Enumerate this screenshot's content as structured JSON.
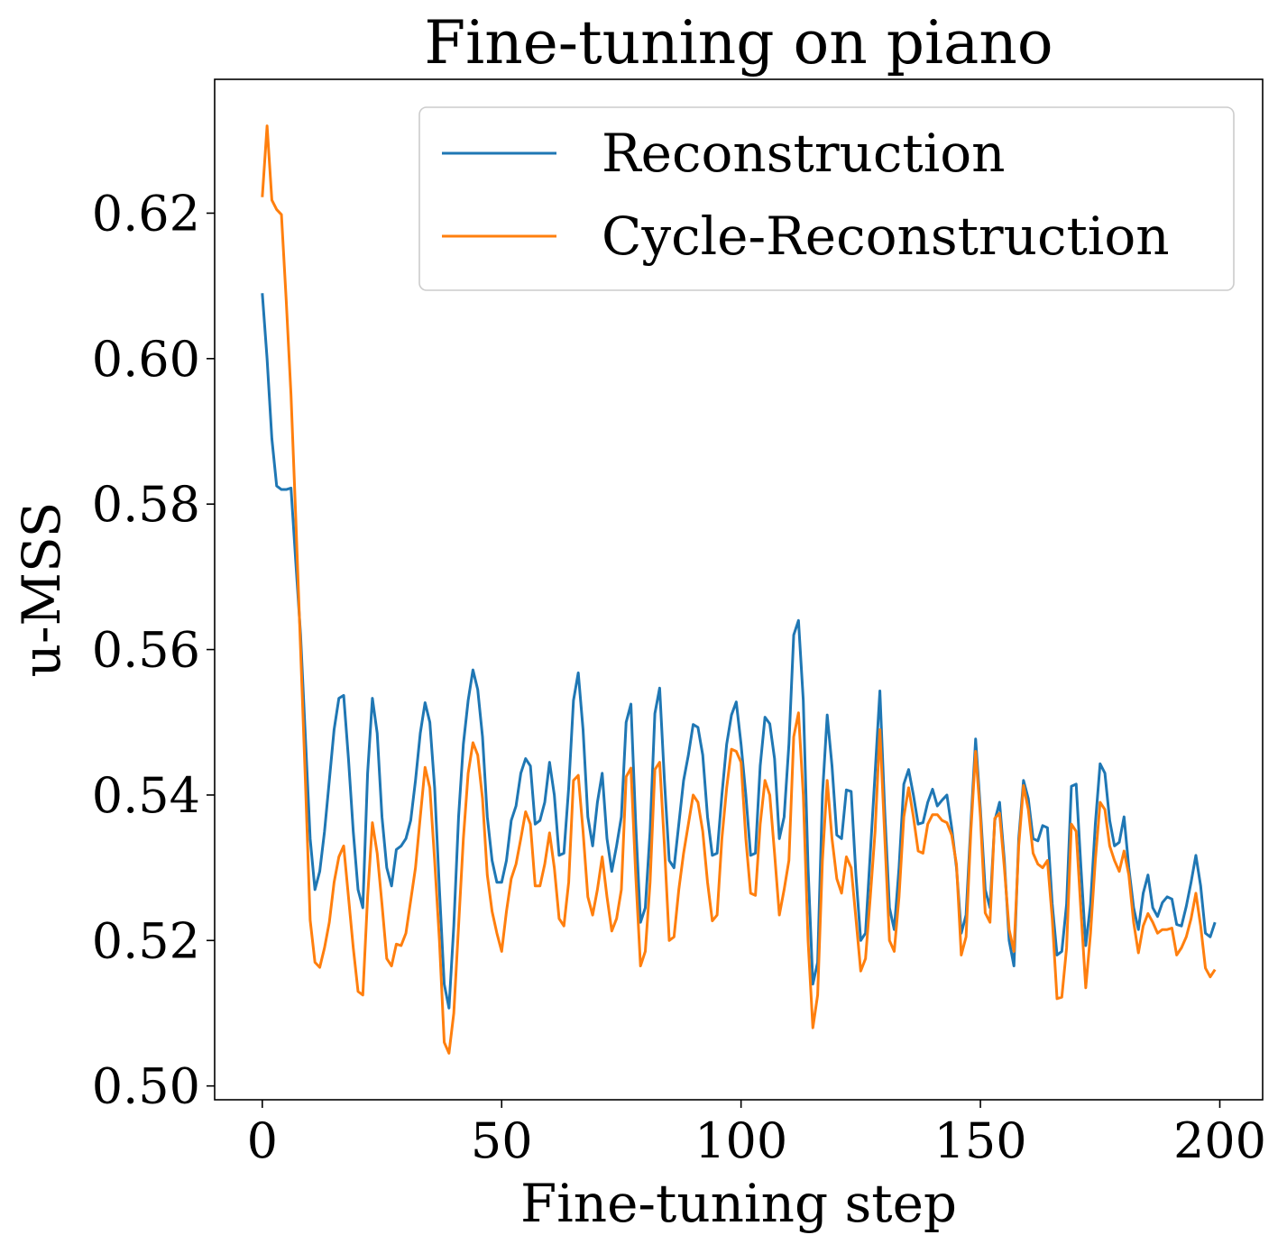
{
  "chart_data": {
    "type": "line",
    "title": "Fine-tuning on piano",
    "x_label": "Fine-tuning step",
    "y_label": "u-MSS",
    "x": [
      0,
      1,
      2,
      3,
      4,
      5,
      6,
      7,
      8,
      9,
      10,
      11,
      12,
      13,
      14,
      15,
      16,
      17,
      18,
      19,
      20,
      21,
      22,
      23,
      24,
      25,
      26,
      27,
      28,
      29,
      30,
      31,
      32,
      33,
      34,
      35,
      36,
      37,
      38,
      39,
      40,
      41,
      42,
      43,
      44,
      45,
      46,
      47,
      48,
      49,
      50,
      51,
      52,
      53,
      54,
      55,
      56,
      57,
      58,
      59,
      60,
      61,
      62,
      63,
      64,
      65,
      66,
      67,
      68,
      69,
      70,
      71,
      72,
      73,
      74,
      75,
      76,
      77,
      78,
      79,
      80,
      81,
      82,
      83,
      84,
      85,
      86,
      87,
      88,
      89,
      90,
      91,
      92,
      93,
      94,
      95,
      96,
      97,
      98,
      99,
      100,
      101,
      102,
      103,
      104,
      105,
      106,
      107,
      108,
      109,
      110,
      111,
      112,
      113,
      114,
      115,
      116,
      117,
      118,
      119,
      120,
      121,
      122,
      123,
      124,
      125,
      126,
      127,
      128,
      129,
      130,
      131,
      132,
      133,
      134,
      135,
      136,
      137,
      138,
      139,
      140,
      141,
      142,
      143,
      144,
      145,
      146,
      147,
      148,
      149,
      150,
      151,
      152,
      153,
      154,
      155,
      156,
      157,
      158,
      159,
      160,
      161,
      162,
      163,
      164,
      165,
      166,
      167,
      168,
      169,
      170,
      171,
      172,
      173,
      174,
      175,
      176,
      177,
      178,
      179,
      180,
      181,
      182,
      183,
      184,
      185,
      186,
      187,
      188,
      189,
      190,
      191,
      192,
      193,
      194,
      195,
      196,
      197,
      198,
      199
    ],
    "series": [
      {
        "name": "Reconstruction",
        "color": "#1f77b4",
        "values": [
          0.609,
          0.6,
          0.589,
          0.5825,
          0.582,
          0.582,
          0.5822,
          0.572,
          0.562,
          0.548,
          0.534,
          0.527,
          0.5295,
          0.535,
          0.542,
          0.549,
          0.5533,
          0.5537,
          0.545,
          0.535,
          0.527,
          0.5245,
          0.543,
          0.5533,
          0.5485,
          0.537,
          0.53,
          0.5275,
          0.5325,
          0.533,
          0.534,
          0.5365,
          0.542,
          0.5485,
          0.5527,
          0.55,
          0.541,
          0.527,
          0.514,
          0.5107,
          0.522,
          0.537,
          0.547,
          0.553,
          0.5572,
          0.5545,
          0.548,
          0.537,
          0.531,
          0.528,
          0.528,
          0.531,
          0.5365,
          0.5385,
          0.543,
          0.545,
          0.544,
          0.536,
          0.5365,
          0.539,
          0.5445,
          0.54,
          0.5317,
          0.532,
          0.541,
          0.553,
          0.5568,
          0.549,
          0.537,
          0.533,
          0.539,
          0.543,
          0.534,
          0.5295,
          0.533,
          0.537,
          0.55,
          0.5525,
          0.536,
          0.5225,
          0.5245,
          0.535,
          0.5512,
          0.5547,
          0.542,
          0.531,
          0.53,
          0.536,
          0.542,
          0.5455,
          0.5497,
          0.5493,
          0.5455,
          0.537,
          0.5317,
          0.532,
          0.54,
          0.547,
          0.551,
          0.5528,
          0.547,
          0.54,
          0.5317,
          0.532,
          0.544,
          0.5507,
          0.5498,
          0.545,
          0.534,
          0.537,
          0.547,
          0.562,
          0.564,
          0.553,
          0.53,
          0.514,
          0.517,
          0.54,
          0.551,
          0.544,
          0.5345,
          0.534,
          0.5407,
          0.5405,
          0.529,
          0.52,
          0.521,
          0.532,
          0.543,
          0.5543,
          0.538,
          0.5245,
          0.5215,
          0.53,
          0.5415,
          0.5435,
          0.54,
          0.536,
          0.5362,
          0.539,
          0.5408,
          0.5385,
          0.5393,
          0.54,
          0.5355,
          0.53,
          0.521,
          0.5235,
          0.536,
          0.5477,
          0.538,
          0.527,
          0.5245,
          0.5365,
          0.539,
          0.531,
          0.52,
          0.5165,
          0.534,
          0.542,
          0.5395,
          0.534,
          0.5337,
          0.5358,
          0.5355,
          0.525,
          0.518,
          0.5185,
          0.525,
          0.5412,
          0.5415,
          0.53,
          0.5193,
          0.525,
          0.536,
          0.5443,
          0.543,
          0.5365,
          0.533,
          0.5335,
          0.537,
          0.53,
          0.5245,
          0.5215,
          0.5265,
          0.529,
          0.5245,
          0.5233,
          0.5252,
          0.526,
          0.5257,
          0.5222,
          0.522,
          0.5247,
          0.528,
          0.5317,
          0.5275,
          0.521,
          0.5205,
          0.5225
        ]
      },
      {
        "name": "Cycle-Reconstruction",
        "color": "#ff7f0e",
        "values": [
          0.6222,
          0.632,
          0.6218,
          0.6205,
          0.6198,
          0.608,
          0.595,
          0.578,
          0.56,
          0.542,
          0.5228,
          0.517,
          0.5163,
          0.519,
          0.5225,
          0.528,
          0.5315,
          0.533,
          0.526,
          0.519,
          0.513,
          0.5125,
          0.526,
          0.5362,
          0.532,
          0.525,
          0.5175,
          0.5165,
          0.5195,
          0.5193,
          0.521,
          0.5255,
          0.53,
          0.537,
          0.5438,
          0.541,
          0.531,
          0.52,
          0.506,
          0.5045,
          0.51,
          0.522,
          0.534,
          0.543,
          0.5472,
          0.5455,
          0.5395,
          0.529,
          0.524,
          0.521,
          0.5185,
          0.524,
          0.5285,
          0.5305,
          0.534,
          0.5377,
          0.536,
          0.5275,
          0.5275,
          0.5305,
          0.5348,
          0.53,
          0.523,
          0.522,
          0.528,
          0.542,
          0.5427,
          0.535,
          0.526,
          0.5235,
          0.527,
          0.5315,
          0.526,
          0.5213,
          0.523,
          0.527,
          0.5425,
          0.5437,
          0.529,
          0.5165,
          0.5185,
          0.528,
          0.5435,
          0.5445,
          0.533,
          0.52,
          0.5205,
          0.527,
          0.532,
          0.536,
          0.54,
          0.539,
          0.535,
          0.528,
          0.5227,
          0.5235,
          0.534,
          0.541,
          0.5463,
          0.546,
          0.5445,
          0.534,
          0.5265,
          0.5262,
          0.536,
          0.542,
          0.54,
          0.532,
          0.5235,
          0.527,
          0.531,
          0.548,
          0.5513,
          0.54,
          0.52,
          0.508,
          0.5125,
          0.531,
          0.542,
          0.534,
          0.5285,
          0.5265,
          0.5315,
          0.53,
          0.523,
          0.5158,
          0.5175,
          0.526,
          0.535,
          0.549,
          0.5345,
          0.52,
          0.5185,
          0.526,
          0.537,
          0.541,
          0.537,
          0.5323,
          0.532,
          0.536,
          0.5373,
          0.5373,
          0.5365,
          0.5362,
          0.5345,
          0.5305,
          0.518,
          0.5205,
          0.535,
          0.546,
          0.537,
          0.5238,
          0.5225,
          0.5368,
          0.5375,
          0.53,
          0.5215,
          0.5185,
          0.533,
          0.5413,
          0.538,
          0.532,
          0.5305,
          0.53,
          0.531,
          0.523,
          0.512,
          0.5122,
          0.519,
          0.536,
          0.535,
          0.524,
          0.5135,
          0.521,
          0.531,
          0.539,
          0.538,
          0.533,
          0.531,
          0.5295,
          0.5323,
          0.529,
          0.5225,
          0.5183,
          0.522,
          0.5237,
          0.5225,
          0.521,
          0.5215,
          0.5215,
          0.5217,
          0.518,
          0.519,
          0.5205,
          0.523,
          0.5265,
          0.522,
          0.5162,
          0.515,
          0.516
        ]
      }
    ],
    "xlim": [
      -9.95,
      208.95
    ],
    "ylim": [
      0.4981,
      0.6384
    ],
    "xticks": [
      0,
      50,
      100,
      150,
      200
    ],
    "yticks": [
      {
        "value": 0.5,
        "label": "0.50"
      },
      0.52,
      0.54,
      0.56,
      0.58,
      {
        "value": 0.6,
        "label": "0.60"
      },
      0.62
    ],
    "legend": "upper right"
  }
}
